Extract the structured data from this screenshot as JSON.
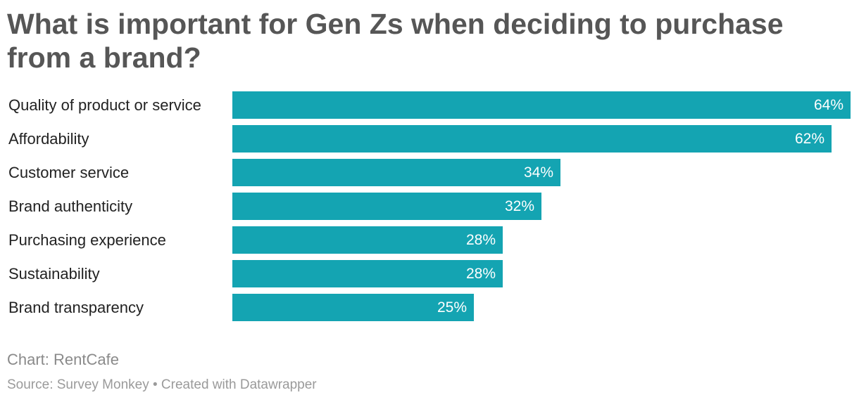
{
  "chart_data": {
    "type": "bar",
    "orientation": "horizontal",
    "title": "What is important for Gen Zs when deciding to purchase from a brand?",
    "categories": [
      "Quality of product or service",
      "Affordability",
      "Customer service",
      "Brand authenticity",
      "Purchasing experience",
      "Sustainability",
      "Brand transparency"
    ],
    "values": [
      64,
      62,
      34,
      32,
      28,
      28,
      25
    ],
    "value_labels": [
      "64%",
      "62%",
      "34%",
      "32%",
      "28%",
      "28%",
      "25%"
    ],
    "xlim": [
      0,
      64
    ],
    "unit": "%",
    "grid": false,
    "legend": "none",
    "bar_color": "#14a4b2"
  },
  "credit": "Chart: RentCafe",
  "footer": {
    "source": "Source: Survey Monkey",
    "separator": "•",
    "created_with": "Created with Datawrapper"
  }
}
